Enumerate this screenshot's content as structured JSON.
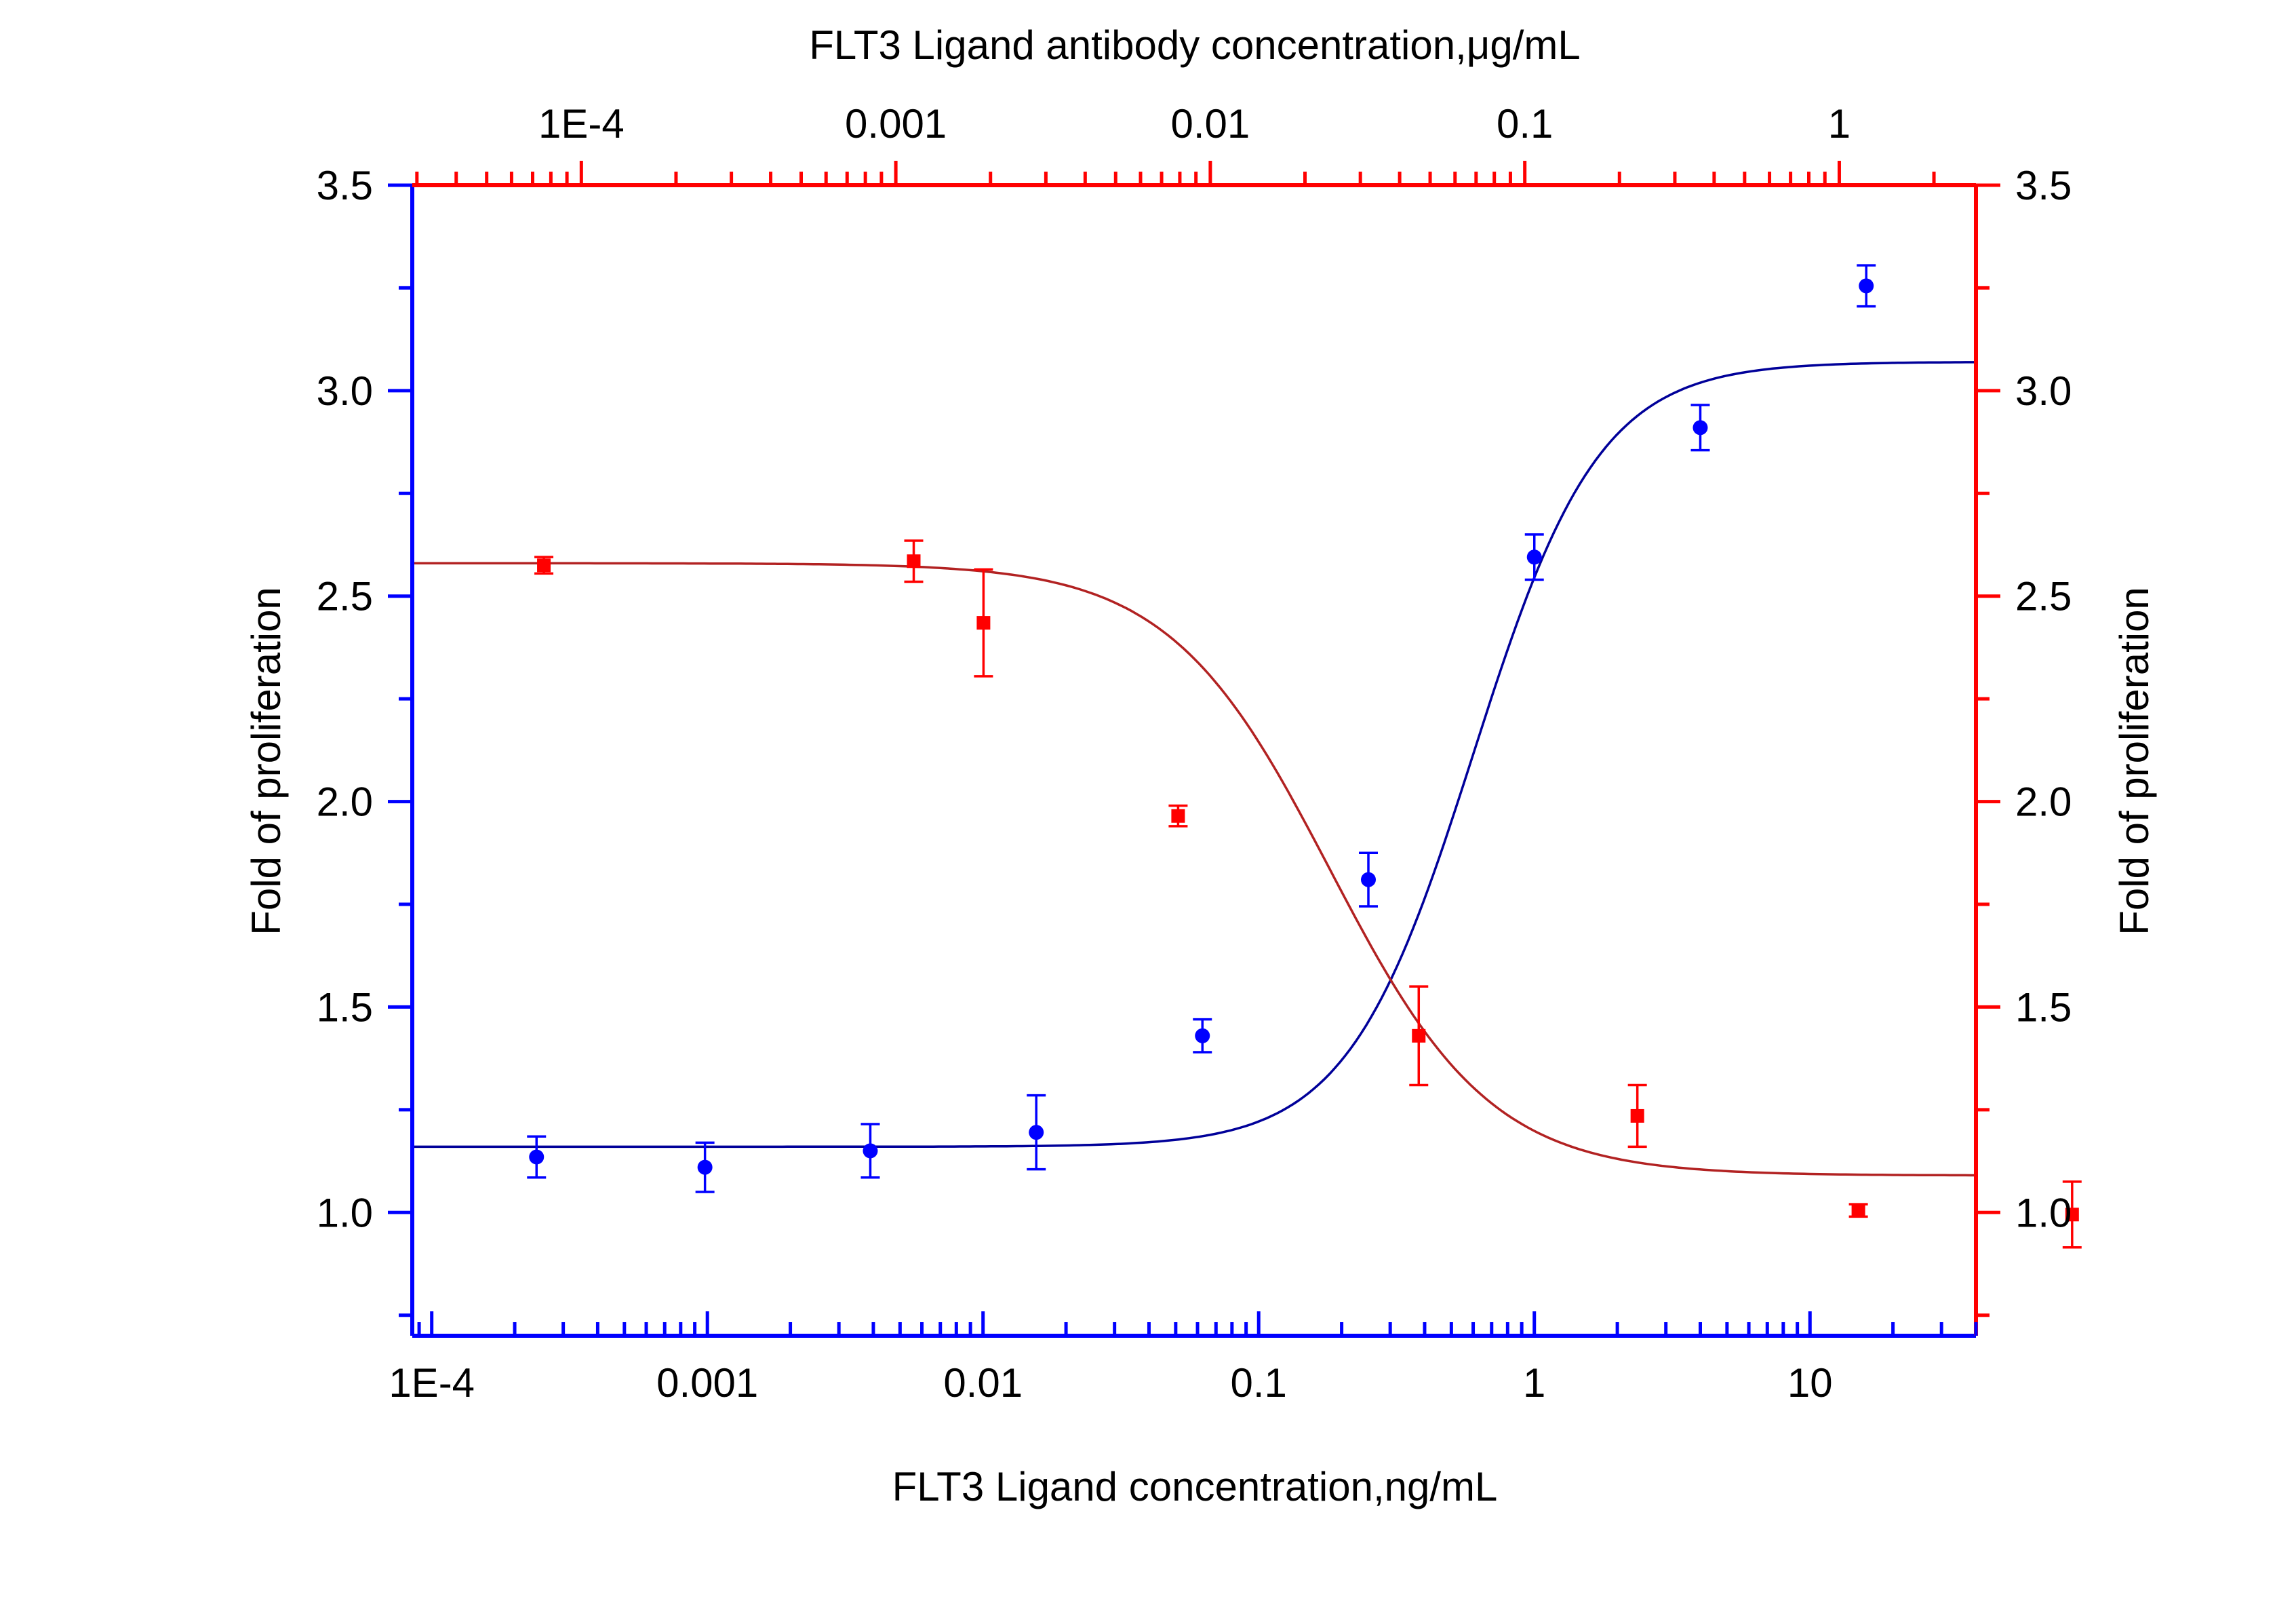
{
  "chart_data": {
    "type": "scatter",
    "title": "",
    "x_axis_bottom": {
      "label": "FLT3 Ligand concentration,ng/mL",
      "scale": "log",
      "range": [
        8.5e-05,
        40
      ],
      "tick_labels": [
        {
          "value": 0.0001,
          "label": "1E-4"
        },
        {
          "value": 0.001,
          "label": "0.001"
        },
        {
          "value": 0.01,
          "label": "0.01"
        },
        {
          "value": 0.1,
          "label": "0.1"
        },
        {
          "value": 1,
          "label": "1"
        },
        {
          "value": 10,
          "label": "10"
        }
      ],
      "color": "#0000ff"
    },
    "x_axis_top": {
      "label": "FLT3 Ligand antibody concentration,μg/mL",
      "scale": "log",
      "range": [
        2.9e-05,
        2.72
      ],
      "tick_labels": [
        {
          "value": 0.0001,
          "label": "1E-4"
        },
        {
          "value": 0.001,
          "label": "0.001"
        },
        {
          "value": 0.01,
          "label": "0.01"
        },
        {
          "value": 0.1,
          "label": "0.1"
        },
        {
          "value": 1,
          "label": "1"
        }
      ],
      "color": "#ff0000"
    },
    "y_axis_left": {
      "label": "Fold of proliferation",
      "range": [
        0.7,
        3.5
      ],
      "tick_labels": [
        "1.0",
        "1.5",
        "2.0",
        "2.5",
        "3.0",
        "3.5"
      ],
      "color": "#0000ff"
    },
    "y_axis_right": {
      "label": "Fold of proliferation",
      "range": [
        0.7,
        3.5
      ],
      "tick_labels": [
        "1.0",
        "1.5",
        "2.0",
        "2.5",
        "3.0",
        "3.5"
      ],
      "color": "#ff0000"
    },
    "grid": false,
    "legend": "none",
    "series": [
      {
        "axis": "bottom-left",
        "marker": "circle",
        "color": "#0000ff",
        "curve_color": "#000099",
        "x": [
          0.00024,
          0.00098,
          0.0039,
          0.0156,
          0.0625,
          0.25,
          1.0,
          4.0,
          16.0
        ],
        "y": [
          1.135,
          1.11,
          1.15,
          1.195,
          1.43,
          1.81,
          2.595,
          2.91,
          3.255
        ],
        "error": [
          0.05,
          0.06,
          0.065,
          0.09,
          0.04,
          0.065,
          0.055,
          0.055,
          0.05
        ],
        "fit": {
          "bottom": 1.16,
          "top": 3.07,
          "ec50": 0.6,
          "hill": 1.9
        }
      },
      {
        "axis": "top-right",
        "marker": "square",
        "color": "#ff0000",
        "curve_color": "#b22222",
        "x": [
          7.6e-05,
          0.00114,
          0.0019,
          0.0079,
          0.046,
          0.228,
          1.15,
          5.5
        ],
        "y": [
          2.575,
          2.585,
          2.435,
          1.965,
          1.43,
          1.235,
          1.005,
          0.995
        ],
        "error": [
          0.02,
          0.05,
          0.13,
          0.025,
          0.12,
          0.075,
          0.015,
          0.08
        ],
        "fit": {
          "top": 2.58,
          "bottom": 1.09,
          "ic50": 0.024,
          "hill": 1.7
        }
      }
    ]
  }
}
